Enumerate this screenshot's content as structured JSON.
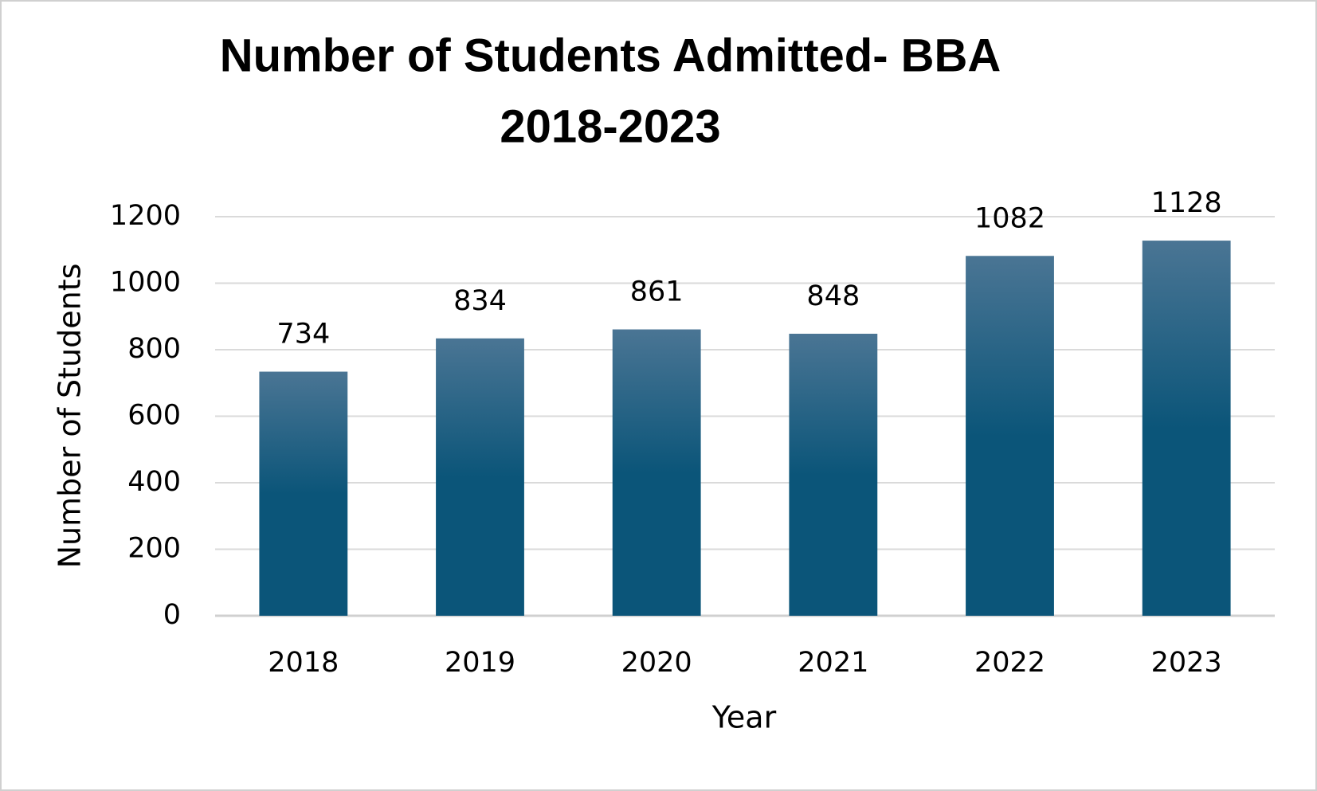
{
  "chart_data": {
    "type": "bar",
    "title": [
      "Number of Students Admitted- BBA",
      "2018-2023"
    ],
    "x_label": "Year",
    "y_label": "Number of Students",
    "categories": [
      "2018",
      "2019",
      "2020",
      "2021",
      "2022",
      "2023"
    ],
    "values": [
      734,
      834,
      861,
      848,
      1082,
      1128
    ],
    "color": [
      "#4a7594",
      "#0b5579"
    ],
    "ylim": [
      0,
      1200
    ],
    "yticks": [
      0,
      200,
      400,
      600,
      800,
      1000,
      1200
    ],
    "grid": true
  }
}
